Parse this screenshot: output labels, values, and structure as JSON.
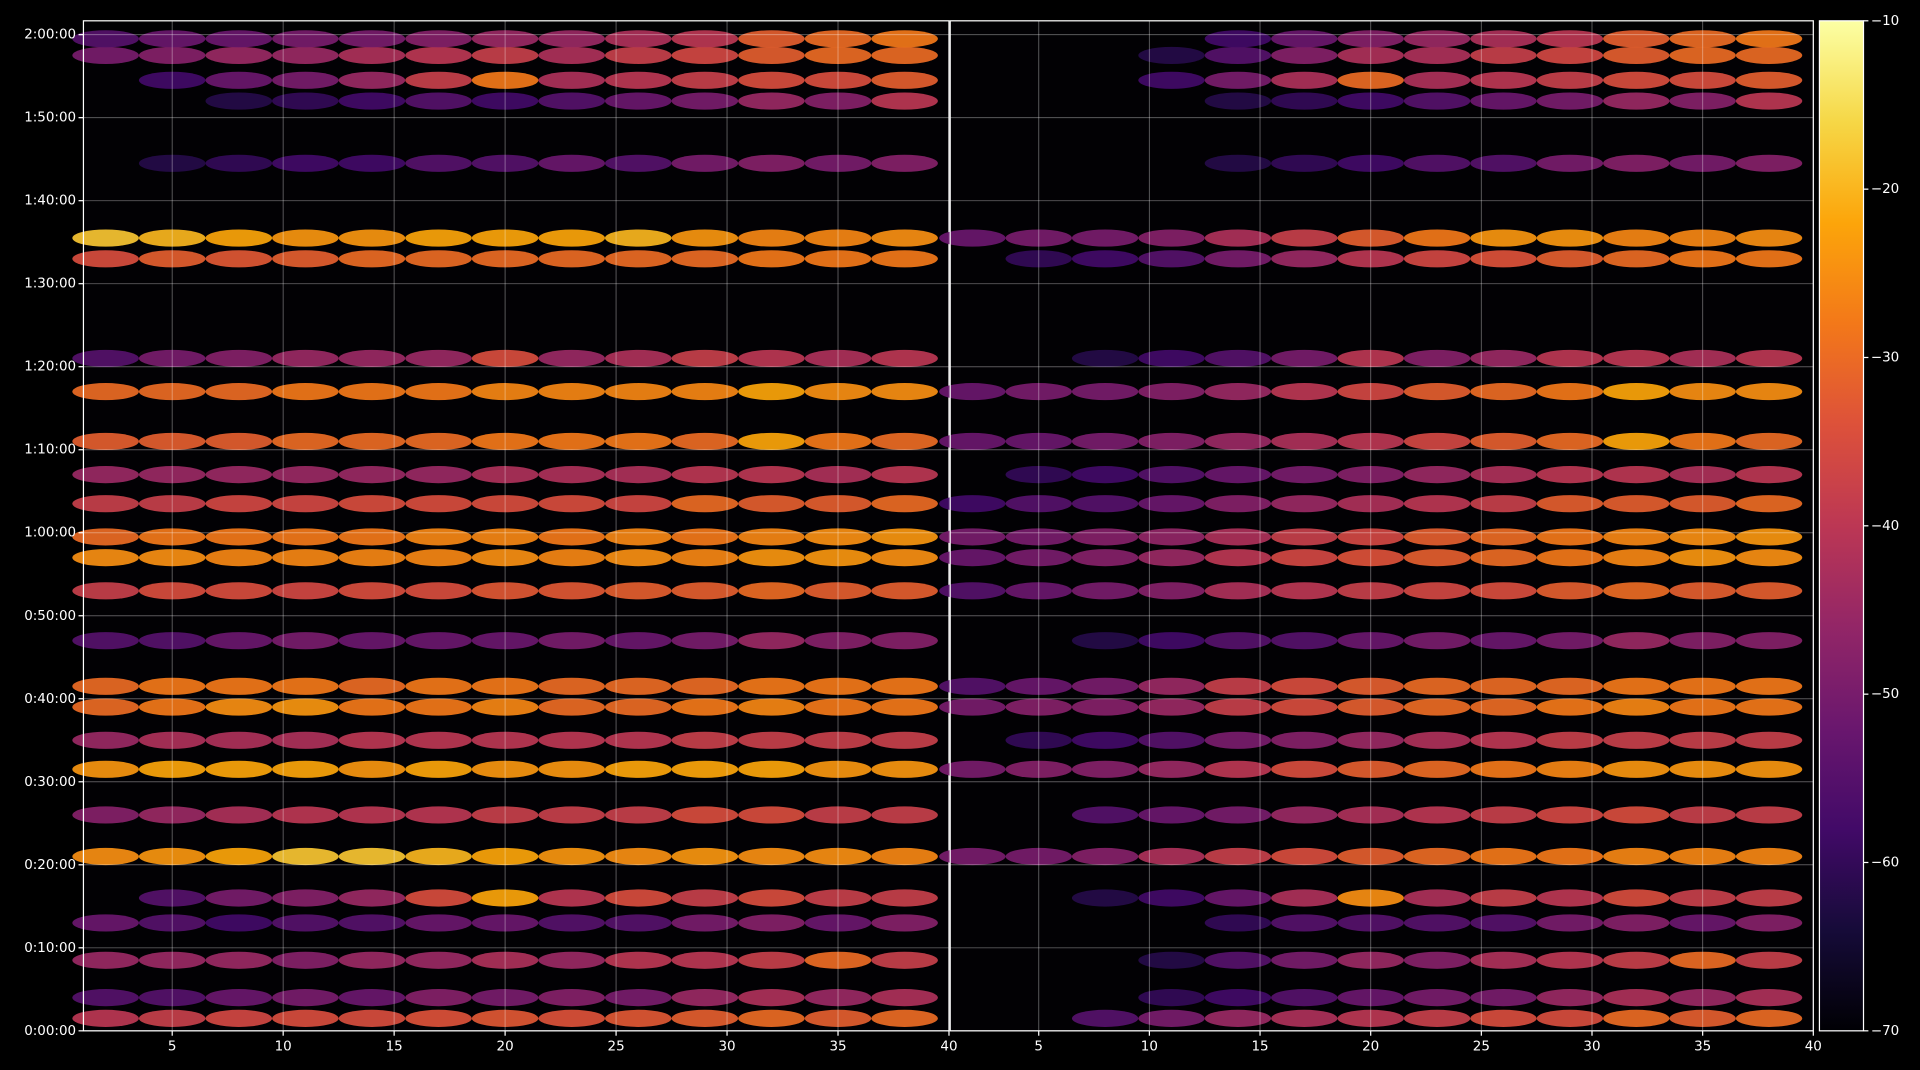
{
  "chart_data": [
    {
      "type": "heatmap",
      "colormap": "inferno",
      "clim": [
        -70,
        -10
      ],
      "grid": true,
      "xlim": [
        1,
        40
      ],
      "xticks": [
        5,
        10,
        15,
        20,
        25,
        30,
        35,
        40
      ],
      "ylim": [
        0,
        7300
      ],
      "yticks": [
        {
          "value": 0,
          "label": "0:00:00"
        },
        {
          "value": 600,
          "label": "0:10:00"
        },
        {
          "value": 1200,
          "label": "0:20:00"
        },
        {
          "value": 1800,
          "label": "0:30:00"
        },
        {
          "value": 2400,
          "label": "0:40:00"
        },
        {
          "value": 3000,
          "label": "0:50:00"
        },
        {
          "value": 3600,
          "label": "1:00:00"
        },
        {
          "value": 4200,
          "label": "1:10:00"
        },
        {
          "value": 4800,
          "label": "1:20:00"
        },
        {
          "value": 5400,
          "label": "1:30:00"
        },
        {
          "value": 6000,
          "label": "1:40:00"
        },
        {
          "value": 6600,
          "label": "1:50:00"
        },
        {
          "value": 7200,
          "label": "2:00:00"
        }
      ],
      "x": [
        2,
        5,
        8,
        11,
        14,
        17,
        20,
        23,
        26,
        29,
        32,
        35,
        38
      ],
      "y": [
        90,
        240,
        510,
        780,
        960,
        1260,
        1560,
        1890,
        2100,
        2340,
        2490,
        2820,
        3180,
        3420,
        3570,
        3810,
        4020,
        4260,
        4620,
        4860,
        5580,
        5730,
        6270,
        6720,
        6870,
        7050,
        7170
      ],
      "values": [
        [
          -40,
          -38,
          -36,
          -35,
          -35,
          -34,
          -33,
          -34,
          -33,
          -32,
          -30,
          -32,
          -30
        ],
        [
          -55,
          -55,
          -52,
          -50,
          -52,
          -48,
          -50,
          -48,
          -50,
          -45,
          -42,
          -45,
          -42
        ],
        [
          -45,
          -45,
          -45,
          -48,
          -45,
          -45,
          -42,
          -45,
          -40,
          -40,
          -38,
          -30,
          -38
        ],
        [
          -52,
          -55,
          -58,
          -55,
          -55,
          -52,
          -52,
          -55,
          -55,
          -50,
          -48,
          -52,
          -48
        ],
        [
          null,
          -55,
          -50,
          -48,
          -45,
          -35,
          -22,
          -40,
          -35,
          -38,
          -35,
          -38,
          -38
        ],
        [
          -25,
          -24,
          -22,
          -18,
          -18,
          -20,
          -22,
          -24,
          -25,
          -24,
          -25,
          -25,
          -26
        ],
        [
          -48,
          -45,
          -42,
          -40,
          -40,
          -40,
          -38,
          -38,
          -38,
          -35,
          -35,
          -38,
          -38
        ],
        [
          -24,
          -22,
          -22,
          -22,
          -24,
          -22,
          -24,
          -24,
          -22,
          -22,
          -22,
          -24,
          -24
        ],
        [
          -45,
          -42,
          -42,
          -42,
          -40,
          -40,
          -40,
          -40,
          -40,
          -38,
          -38,
          -38,
          -38
        ],
        [
          -30,
          -28,
          -25,
          -24,
          -28,
          -28,
          -26,
          -30,
          -30,
          -28,
          -26,
          -28,
          -28
        ],
        [
          -30,
          -28,
          -28,
          -28,
          -30,
          -28,
          -28,
          -30,
          -30,
          -30,
          -28,
          -28,
          -28
        ],
        [
          -55,
          -55,
          -52,
          -50,
          -52,
          -52,
          -52,
          -50,
          -52,
          -50,
          -45,
          -48,
          -48
        ],
        [
          -38,
          -35,
          -35,
          -36,
          -35,
          -35,
          -33,
          -33,
          -32,
          -32,
          -30,
          -32,
          -32
        ],
        [
          -25,
          -25,
          -26,
          -26,
          -26,
          -26,
          -25,
          -26,
          -25,
          -26,
          -24,
          -24,
          -25
        ],
        [
          -30,
          -28,
          -28,
          -28,
          -28,
          -26,
          -26,
          -28,
          -26,
          -28,
          -26,
          -25,
          -24
        ],
        [
          -38,
          -38,
          -36,
          -36,
          -35,
          -35,
          -35,
          -35,
          -36,
          -30,
          -32,
          -32,
          -30
        ],
        [
          -45,
          -45,
          -45,
          -45,
          -45,
          -45,
          -42,
          -42,
          -42,
          -40,
          -40,
          -42,
          -40
        ],
        [
          -32,
          -32,
          -32,
          -30,
          -30,
          -30,
          -28,
          -28,
          -28,
          -30,
          -22,
          -28,
          -30
        ],
        [
          -30,
          -30,
          -30,
          -28,
          -28,
          -28,
          -26,
          -26,
          -26,
          -26,
          -22,
          -25,
          -25
        ],
        [
          -55,
          -50,
          -48,
          -45,
          -45,
          -45,
          -35,
          -45,
          -42,
          -38,
          -40,
          -42,
          -40
        ],
        [
          -35,
          -32,
          -33,
          -32,
          -30,
          -30,
          -30,
          -30,
          -30,
          -30,
          -28,
          -28,
          -28
        ],
        [
          -18,
          -20,
          -22,
          -24,
          -24,
          -22,
          -22,
          -22,
          -20,
          -24,
          -26,
          -26,
          -25
        ],
        [
          null,
          -62,
          -60,
          -58,
          -58,
          -55,
          -55,
          -52,
          -55,
          -50,
          -48,
          -50,
          -48
        ],
        [
          null,
          null,
          -62,
          -60,
          -58,
          -55,
          -58,
          -55,
          -52,
          -50,
          -45,
          -48,
          -40
        ],
        [
          null,
          -58,
          -52,
          -50,
          -45,
          -38,
          -28,
          -42,
          -40,
          -38,
          -35,
          -35,
          -32
        ],
        [
          -50,
          -48,
          -45,
          -45,
          -42,
          -40,
          -38,
          -42,
          -38,
          -36,
          -32,
          -30,
          -30
        ],
        [
          -55,
          -52,
          -52,
          -50,
          -50,
          -48,
          -45,
          -45,
          -42,
          -40,
          -32,
          -30,
          -28
        ]
      ]
    },
    {
      "type": "heatmap",
      "colormap": "inferno",
      "clim": [
        -70,
        -10
      ],
      "grid": true,
      "xlim": [
        1,
        40
      ],
      "xticks": [
        5,
        10,
        15,
        20,
        25,
        30,
        35,
        40
      ],
      "ylim": [
        0,
        7300
      ],
      "x": [
        2,
        5,
        8,
        11,
        14,
        17,
        20,
        23,
        26,
        29,
        32,
        35,
        38
      ],
      "y": [
        90,
        240,
        510,
        780,
        960,
        1260,
        1560,
        1890,
        2100,
        2340,
        2490,
        2820,
        3180,
        3420,
        3570,
        3810,
        4020,
        4260,
        4620,
        4860,
        5580,
        5730,
        6270,
        6720,
        6870,
        7050,
        7170
      ],
      "values": [
        [
          null,
          null,
          -55,
          -50,
          -45,
          -42,
          -40,
          -38,
          -35,
          -35,
          -30,
          -32,
          -30
        ],
        [
          null,
          null,
          null,
          -60,
          -58,
          -55,
          -52,
          -50,
          -50,
          -45,
          -42,
          -45,
          -42
        ],
        [
          null,
          null,
          null,
          -62,
          -55,
          -50,
          -45,
          -48,
          -42,
          -40,
          -38,
          -30,
          -38
        ],
        [
          null,
          null,
          null,
          null,
          -60,
          -55,
          -55,
          -55,
          -55,
          -50,
          -48,
          -52,
          -48
        ],
        [
          null,
          null,
          -62,
          -58,
          -52,
          -42,
          -25,
          -42,
          -38,
          -40,
          -35,
          -38,
          -38
        ],
        [
          -50,
          -50,
          -48,
          -42,
          -38,
          -35,
          -32,
          -30,
          -28,
          -28,
          -26,
          -26,
          -26
        ],
        [
          null,
          null,
          -55,
          -52,
          -50,
          -45,
          -42,
          -40,
          -38,
          -36,
          -35,
          -38,
          -38
        ],
        [
          -50,
          -48,
          -48,
          -45,
          -40,
          -35,
          -32,
          -30,
          -28,
          -26,
          -24,
          -24,
          -24
        ],
        [
          null,
          -60,
          -58,
          -55,
          -50,
          -48,
          -45,
          -42,
          -40,
          -38,
          -38,
          -38,
          -38
        ],
        [
          -50,
          -48,
          -48,
          -45,
          -38,
          -35,
          -32,
          -30,
          -30,
          -28,
          -26,
          -28,
          -28
        ],
        [
          -55,
          -52,
          -50,
          -45,
          -38,
          -35,
          -32,
          -30,
          -30,
          -30,
          -28,
          -28,
          -28
        ],
        [
          null,
          null,
          -62,
          -58,
          -55,
          -55,
          -52,
          -50,
          -52,
          -50,
          -45,
          -48,
          -48
        ],
        [
          -55,
          -52,
          -50,
          -48,
          -42,
          -40,
          -38,
          -36,
          -35,
          -32,
          -30,
          -32,
          -32
        ],
        [
          -52,
          -50,
          -48,
          -45,
          -40,
          -36,
          -34,
          -32,
          -30,
          -28,
          -26,
          -24,
          -25
        ],
        [
          -50,
          -50,
          -48,
          -46,
          -42,
          -38,
          -36,
          -32,
          -30,
          -28,
          -26,
          -25,
          -24
        ],
        [
          -58,
          -55,
          -55,
          -52,
          -48,
          -45,
          -42,
          -40,
          -38,
          -32,
          -32,
          -32,
          -30
        ],
        [
          null,
          -60,
          -58,
          -55,
          -52,
          -50,
          -48,
          -45,
          -42,
          -40,
          -40,
          -42,
          -40
        ],
        [
          -52,
          -52,
          -50,
          -48,
          -45,
          -42,
          -40,
          -36,
          -32,
          -30,
          -22,
          -28,
          -30
        ],
        [
          -52,
          -50,
          -50,
          -48,
          -45,
          -40,
          -36,
          -32,
          -30,
          -28,
          -22,
          -25,
          -25
        ],
        [
          null,
          null,
          -62,
          -58,
          -55,
          -50,
          -40,
          -48,
          -45,
          -40,
          -40,
          -42,
          -40
        ],
        [
          null,
          -60,
          -58,
          -55,
          -50,
          -45,
          -40,
          -36,
          -34,
          -32,
          -30,
          -28,
          -28
        ],
        [
          -52,
          -50,
          -50,
          -48,
          -42,
          -38,
          -32,
          -28,
          -24,
          -24,
          -26,
          -26,
          -25
        ],
        [
          null,
          null,
          null,
          null,
          -62,
          -60,
          -58,
          -55,
          -55,
          -50,
          -48,
          -50,
          -48
        ],
        [
          null,
          null,
          null,
          null,
          -62,
          -60,
          -58,
          -55,
          -52,
          -50,
          -45,
          -48,
          -40
        ],
        [
          null,
          null,
          null,
          -58,
          -50,
          -42,
          -30,
          -42,
          -40,
          -38,
          -35,
          -35,
          -32
        ],
        [
          null,
          null,
          null,
          -62,
          -55,
          -48,
          -42,
          -42,
          -38,
          -36,
          -32,
          -30,
          -30
        ],
        [
          null,
          null,
          null,
          null,
          -58,
          -52,
          -48,
          -45,
          -42,
          -40,
          -32,
          -30,
          -28
        ]
      ],
      "colorbar_ticks": [
        {
          "value": -70,
          "label": "−70"
        },
        {
          "value": -60,
          "label": "−60"
        },
        {
          "value": -50,
          "label": "−50"
        },
        {
          "value": -40,
          "label": "−40"
        },
        {
          "value": -30,
          "label": "−30"
        },
        {
          "value": -20,
          "label": "−20"
        },
        {
          "value": -10,
          "label": "−10"
        }
      ]
    }
  ]
}
